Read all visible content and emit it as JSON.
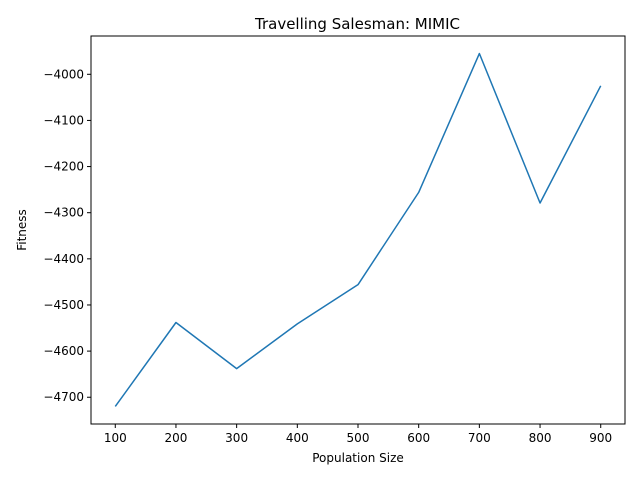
{
  "chart_data": {
    "type": "line",
    "title": "Travelling Salesman: MIMIC",
    "xlabel": "Population Size",
    "ylabel": "Fitness",
    "x": [
      100,
      200,
      300,
      400,
      500,
      600,
      700,
      800,
      900
    ],
    "series": [
      {
        "values": [
          -4720,
          -4538,
          -4638,
          -4541,
          -4456,
          -4256,
          -3955,
          -4279,
          -4025
        ],
        "color": "#1f77b4"
      }
    ],
    "xticks": [
      100,
      200,
      300,
      400,
      500,
      600,
      700,
      800,
      900
    ],
    "yticks": [
      -4700,
      -4600,
      -4500,
      -4400,
      -4300,
      -4200,
      -4100,
      -4000
    ],
    "xlim": [
      60,
      940
    ],
    "ylim": [
      -4758,
      -3917
    ],
    "grid": false,
    "legend": "none"
  }
}
